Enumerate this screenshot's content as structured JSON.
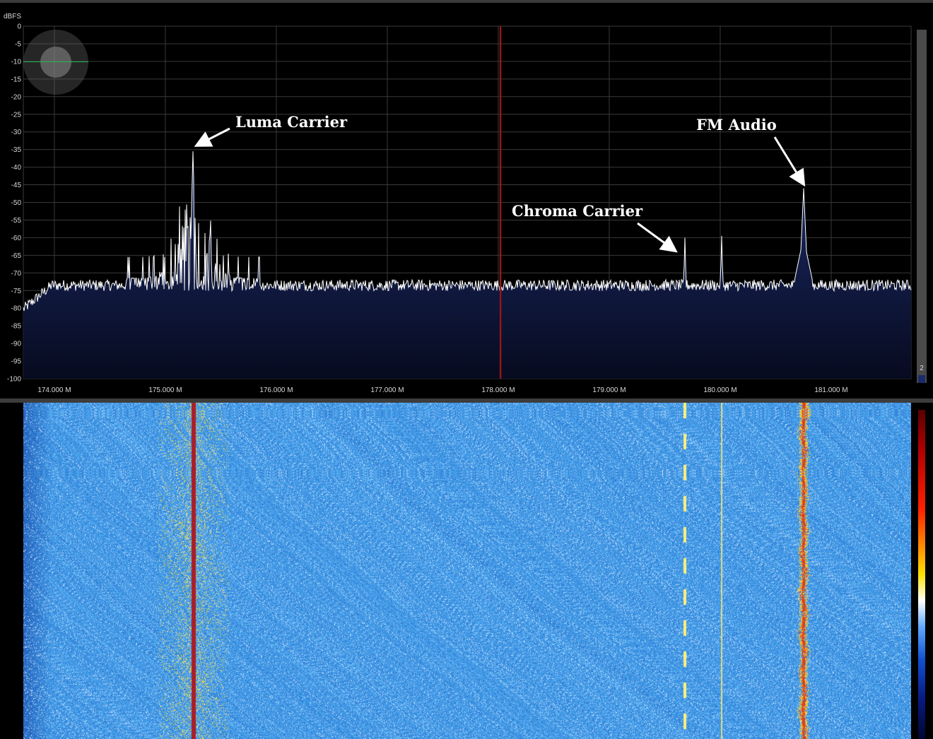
{
  "spectrum": {
    "y_axis_unit": "dBFS",
    "y_ticks": [
      "0",
      "-5",
      "-10",
      "-15",
      "-20",
      "-25",
      "-30",
      "-35",
      "-40",
      "-45",
      "-50",
      "-55",
      "-60",
      "-65",
      "-70",
      "-75",
      "-80",
      "-85",
      "-90",
      "-95",
      "-100"
    ],
    "x_ticks": [
      "174.000 M",
      "175.000 M",
      "176.000 M",
      "177.000 M",
      "178.000 M",
      "179.000 M",
      "180.000 M",
      "181.000 M"
    ],
    "frequency_range_mhz": [
      173.72,
      181.72
    ],
    "dbfs_range": [
      -100,
      0
    ],
    "noise_floor_dbfs": -73.5,
    "center_marker_mhz": 178.02,
    "colors": {
      "grid": "#3a3a3a",
      "trace": "#ffffff",
      "fill_top": "#1d2d6b",
      "fill_bottom": "#070b20",
      "marker": "#d22020"
    },
    "peaks": [
      {
        "freq_mhz": 175.25,
        "dbfs": -35.5
      },
      {
        "freq_mhz": 179.68,
        "dbfs": -60
      },
      {
        "freq_mhz": 180.01,
        "dbfs": -59.5
      },
      {
        "freq_mhz": 180.75,
        "dbfs": -46
      }
    ],
    "annotations": [
      {
        "id": "luma",
        "text": "Luma Carrier"
      },
      {
        "id": "chroma",
        "text": "Chroma Carrier"
      },
      {
        "id": "fm",
        "text": "FM Audio"
      }
    ]
  },
  "scrollbar": {
    "badge": "2"
  },
  "zoom_control": {
    "icon": "zoom-knob-icon"
  },
  "waterfall": {
    "colormap": [
      "#020630",
      "#081a80",
      "#1050d0",
      "#60a8ff",
      "#ffffff",
      "#ffe000",
      "#ff9000",
      "#ff2000",
      "#b00000",
      "#5a0000"
    ],
    "background": "#3f8ee0",
    "signals_mhz": [
      175.25,
      179.68,
      180.01,
      180.75
    ]
  }
}
